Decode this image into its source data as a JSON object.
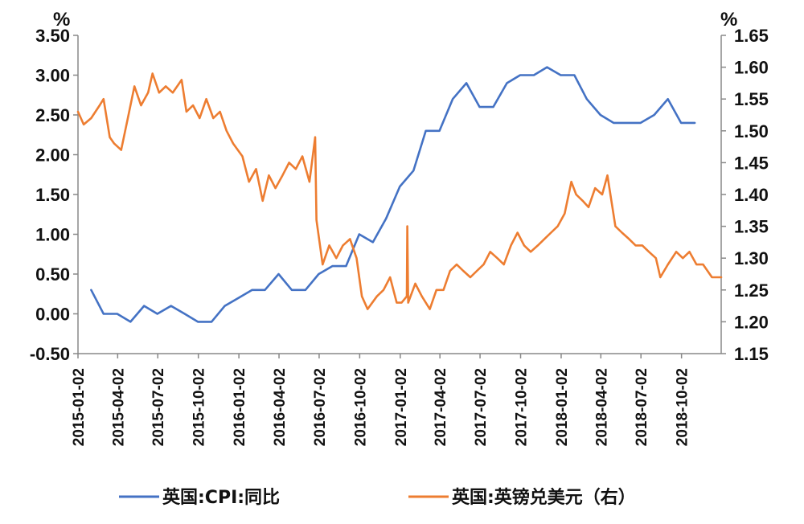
{
  "chart_data": {
    "type": "line",
    "left_axis": {
      "unit": "%",
      "ylim": [
        -0.5,
        3.5
      ],
      "ticks": [
        "3.50",
        "3.00",
        "2.50",
        "2.00",
        "1.50",
        "1.00",
        "0.50",
        "0.00",
        "-0.50"
      ],
      "tick_values": [
        3.5,
        3.0,
        2.5,
        2.0,
        1.5,
        1.0,
        0.5,
        0.0,
        -0.5
      ]
    },
    "right_axis": {
      "unit": "%",
      "ylim": [
        1.15,
        1.65
      ],
      "ticks": [
        "1.65",
        "1.60",
        "1.55",
        "1.50",
        "1.45",
        "1.40",
        "1.35",
        "1.30",
        "1.25",
        "1.20",
        "1.15"
      ],
      "tick_values": [
        1.65,
        1.6,
        1.55,
        1.5,
        1.45,
        1.4,
        1.35,
        1.3,
        1.25,
        1.2,
        1.15
      ]
    },
    "x_range": [
      "2015-01-02",
      "2018-12-31"
    ],
    "x_ticks": [
      "2015-01-02",
      "2015-04-02",
      "2015-07-02",
      "2015-10-02",
      "2016-01-02",
      "2016-04-02",
      "2016-07-02",
      "2016-10-02",
      "2017-01-02",
      "2017-04-02",
      "2017-07-02",
      "2017-10-02",
      "2018-01-02",
      "2018-04-02",
      "2018-07-02",
      "2018-10-02"
    ],
    "series": [
      {
        "name": "英国:CPI:同比",
        "axis": "left",
        "color": "#4472C4",
        "points": [
          [
            "2015-02-01",
            0.3
          ],
          [
            "2015-03-01",
            0.0
          ],
          [
            "2015-04-01",
            0.0
          ],
          [
            "2015-05-01",
            -0.1
          ],
          [
            "2015-06-01",
            0.1
          ],
          [
            "2015-07-01",
            0.0
          ],
          [
            "2015-08-01",
            0.1
          ],
          [
            "2015-09-01",
            0.0
          ],
          [
            "2015-10-01",
            -0.1
          ],
          [
            "2015-11-01",
            -0.1
          ],
          [
            "2015-12-01",
            0.1
          ],
          [
            "2016-01-01",
            0.2
          ],
          [
            "2016-02-01",
            0.3
          ],
          [
            "2016-03-01",
            0.3
          ],
          [
            "2016-04-01",
            0.5
          ],
          [
            "2016-05-01",
            0.3
          ],
          [
            "2016-06-01",
            0.3
          ],
          [
            "2016-07-01",
            0.5
          ],
          [
            "2016-08-01",
            0.6
          ],
          [
            "2016-09-01",
            0.6
          ],
          [
            "2016-10-01",
            1.0
          ],
          [
            "2016-11-01",
            0.9
          ],
          [
            "2016-12-01",
            1.2
          ],
          [
            "2017-01-01",
            1.6
          ],
          [
            "2017-02-01",
            1.8
          ],
          [
            "2017-03-01",
            2.3
          ],
          [
            "2017-04-01",
            2.3
          ],
          [
            "2017-05-01",
            2.7
          ],
          [
            "2017-06-01",
            2.9
          ],
          [
            "2017-07-01",
            2.6
          ],
          [
            "2017-08-01",
            2.6
          ],
          [
            "2017-09-01",
            2.9
          ],
          [
            "2017-10-01",
            3.0
          ],
          [
            "2017-11-01",
            3.0
          ],
          [
            "2017-12-01",
            3.1
          ],
          [
            "2018-01-01",
            3.0
          ],
          [
            "2018-02-01",
            3.0
          ],
          [
            "2018-03-01",
            2.7
          ],
          [
            "2018-04-01",
            2.5
          ],
          [
            "2018-05-01",
            2.4
          ],
          [
            "2018-06-01",
            2.4
          ],
          [
            "2018-07-01",
            2.4
          ],
          [
            "2018-08-01",
            2.5
          ],
          [
            "2018-09-01",
            2.7
          ],
          [
            "2018-10-01",
            2.4
          ],
          [
            "2018-11-01",
            2.4
          ]
        ]
      },
      {
        "name": "英国:英镑兑美元（右）",
        "axis": "right",
        "color": "#ED7D31",
        "points": [
          [
            "2015-01-02",
            1.53
          ],
          [
            "2015-01-15",
            1.51
          ],
          [
            "2015-02-01",
            1.52
          ],
          [
            "2015-02-20",
            1.54
          ],
          [
            "2015-03-01",
            1.55
          ],
          [
            "2015-03-15",
            1.49
          ],
          [
            "2015-03-25",
            1.48
          ],
          [
            "2015-04-10",
            1.47
          ],
          [
            "2015-04-25",
            1.52
          ],
          [
            "2015-05-10",
            1.57
          ],
          [
            "2015-05-25",
            1.54
          ],
          [
            "2015-06-10",
            1.56
          ],
          [
            "2015-06-20",
            1.59
          ],
          [
            "2015-07-05",
            1.56
          ],
          [
            "2015-07-20",
            1.57
          ],
          [
            "2015-08-05",
            1.56
          ],
          [
            "2015-08-25",
            1.58
          ],
          [
            "2015-09-05",
            1.53
          ],
          [
            "2015-09-20",
            1.54
          ],
          [
            "2015-10-05",
            1.52
          ],
          [
            "2015-10-20",
            1.55
          ],
          [
            "2015-11-05",
            1.52
          ],
          [
            "2015-11-20",
            1.53
          ],
          [
            "2015-12-05",
            1.5
          ],
          [
            "2015-12-20",
            1.48
          ],
          [
            "2016-01-10",
            1.46
          ],
          [
            "2016-01-25",
            1.42
          ],
          [
            "2016-02-10",
            1.44
          ],
          [
            "2016-02-25",
            1.39
          ],
          [
            "2016-03-10",
            1.43
          ],
          [
            "2016-03-25",
            1.41
          ],
          [
            "2016-04-10",
            1.43
          ],
          [
            "2016-04-25",
            1.45
          ],
          [
            "2016-05-10",
            1.44
          ],
          [
            "2016-05-25",
            1.46
          ],
          [
            "2016-06-10",
            1.42
          ],
          [
            "2016-06-23",
            1.49
          ],
          [
            "2016-06-26",
            1.36
          ],
          [
            "2016-07-10",
            1.29
          ],
          [
            "2016-07-25",
            1.32
          ],
          [
            "2016-08-10",
            1.3
          ],
          [
            "2016-08-25",
            1.32
          ],
          [
            "2016-09-10",
            1.33
          ],
          [
            "2016-09-25",
            1.3
          ],
          [
            "2016-10-07",
            1.24
          ],
          [
            "2016-10-20",
            1.22
          ],
          [
            "2016-11-10",
            1.24
          ],
          [
            "2016-11-25",
            1.25
          ],
          [
            "2016-12-10",
            1.27
          ],
          [
            "2016-12-25",
            1.23
          ],
          [
            "2017-01-05",
            1.23
          ],
          [
            "2017-01-17",
            1.24
          ],
          [
            "2017-01-18",
            1.35
          ],
          [
            "2017-01-20",
            1.23
          ],
          [
            "2017-02-05",
            1.26
          ],
          [
            "2017-02-20",
            1.24
          ],
          [
            "2017-03-10",
            1.22
          ],
          [
            "2017-03-25",
            1.25
          ],
          [
            "2017-04-10",
            1.25
          ],
          [
            "2017-04-25",
            1.28
          ],
          [
            "2017-05-10",
            1.29
          ],
          [
            "2017-05-25",
            1.28
          ],
          [
            "2017-06-10",
            1.27
          ],
          [
            "2017-06-25",
            1.28
          ],
          [
            "2017-07-10",
            1.29
          ],
          [
            "2017-07-25",
            1.31
          ],
          [
            "2017-08-10",
            1.3
          ],
          [
            "2017-08-25",
            1.29
          ],
          [
            "2017-09-10",
            1.32
          ],
          [
            "2017-09-25",
            1.34
          ],
          [
            "2017-10-10",
            1.32
          ],
          [
            "2017-10-25",
            1.31
          ],
          [
            "2017-11-10",
            1.32
          ],
          [
            "2017-11-25",
            1.33
          ],
          [
            "2017-12-10",
            1.34
          ],
          [
            "2017-12-25",
            1.35
          ],
          [
            "2018-01-10",
            1.37
          ],
          [
            "2018-01-25",
            1.42
          ],
          [
            "2018-02-05",
            1.4
          ],
          [
            "2018-02-20",
            1.39
          ],
          [
            "2018-03-05",
            1.38
          ],
          [
            "2018-03-20",
            1.41
          ],
          [
            "2018-04-05",
            1.4
          ],
          [
            "2018-04-17",
            1.43
          ],
          [
            "2018-05-05",
            1.35
          ],
          [
            "2018-05-20",
            1.34
          ],
          [
            "2018-06-05",
            1.33
          ],
          [
            "2018-06-20",
            1.32
          ],
          [
            "2018-07-05",
            1.32
          ],
          [
            "2018-07-20",
            1.31
          ],
          [
            "2018-08-05",
            1.3
          ],
          [
            "2018-08-15",
            1.27
          ],
          [
            "2018-09-01",
            1.29
          ],
          [
            "2018-09-20",
            1.31
          ],
          [
            "2018-10-05",
            1.3
          ],
          [
            "2018-10-20",
            1.31
          ],
          [
            "2018-11-05",
            1.29
          ],
          [
            "2018-11-20",
            1.29
          ],
          [
            "2018-12-10",
            1.27
          ],
          [
            "2018-12-31",
            1.27
          ]
        ]
      }
    ],
    "legend": {
      "placement": "bottom",
      "entries": [
        {
          "label": "英国:CPI:同比",
          "color": "#4472C4"
        },
        {
          "label": "英国:英镑兑美元（右）",
          "color": "#ED7D31"
        }
      ]
    },
    "grid": false
  }
}
